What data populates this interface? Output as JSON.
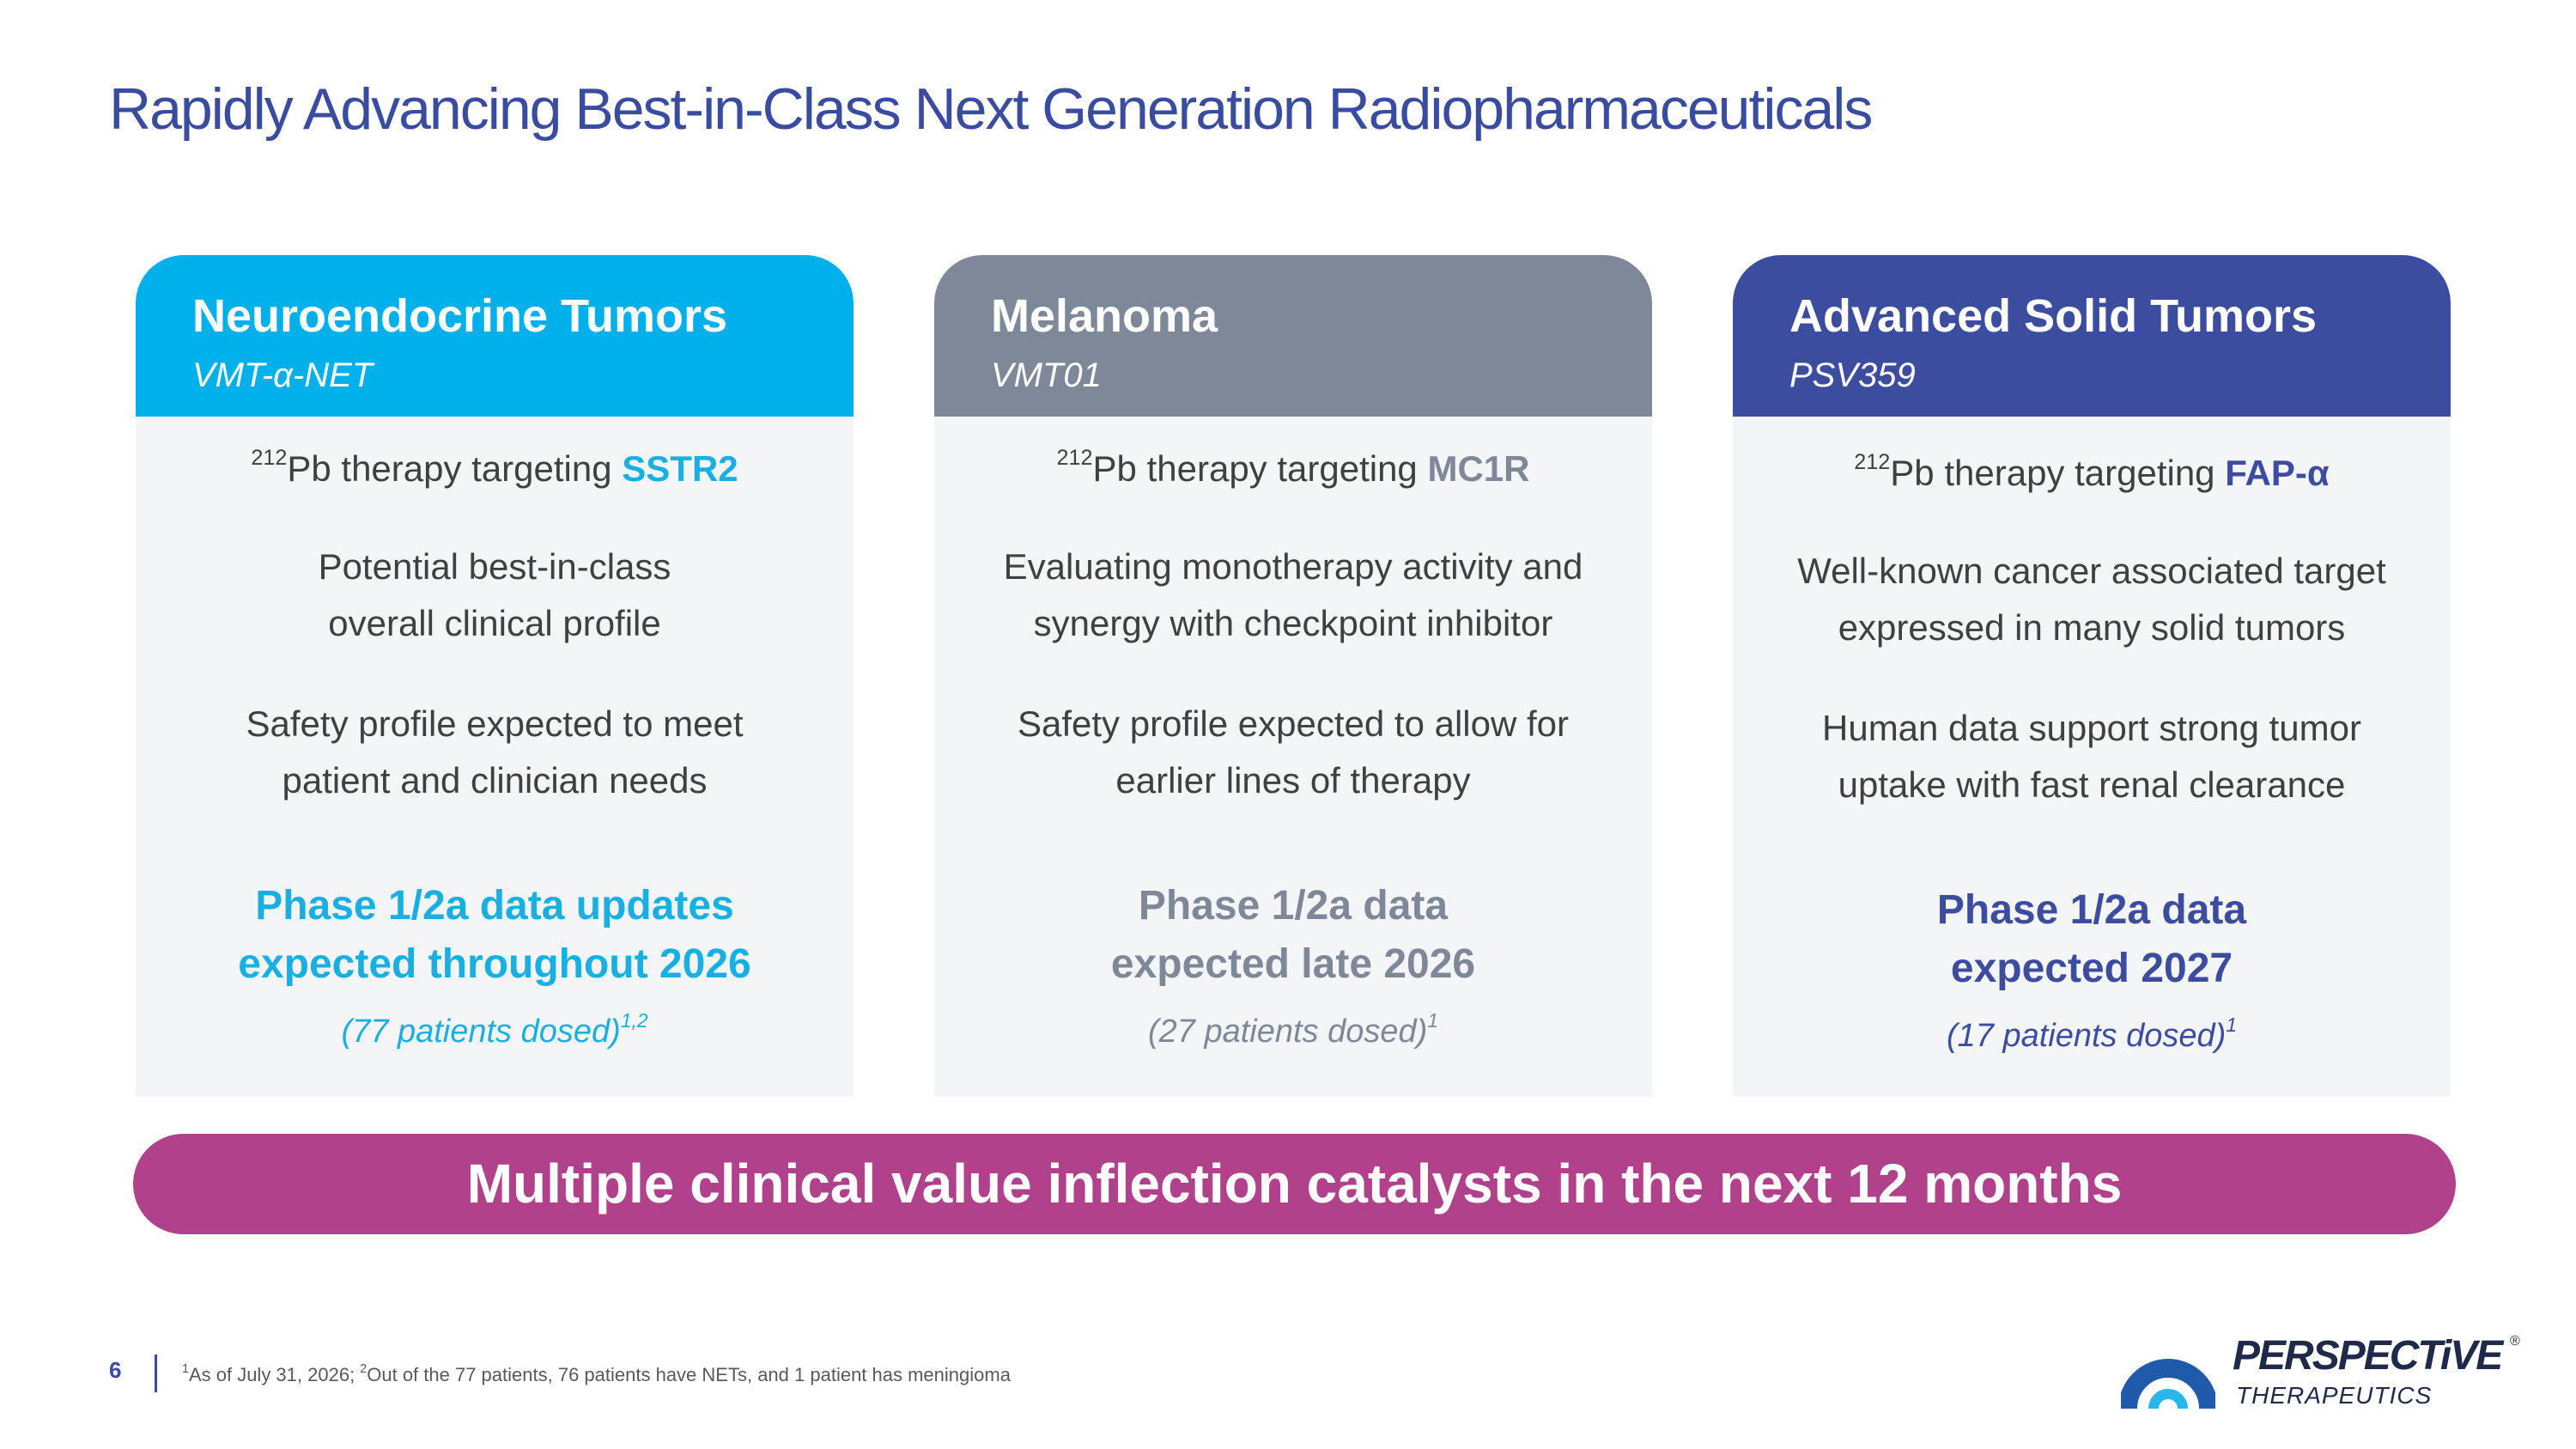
{
  "title": "Rapidly Advancing Best-in-Class Next Generation Radiopharmaceuticals",
  "colors": {
    "title": "#3a4ca0",
    "body_text": "#404040",
    "card_body_bg": "#f4f5f7",
    "banner": "#b0428c"
  },
  "cards": [
    {
      "heading": "Neuroendocrine Tumors",
      "subheading": "VMT-α-NET",
      "header_color": "#00b0ea",
      "accent_color": "#1aafe3",
      "therapy_isotope": "212",
      "therapy_text": "Pb therapy targeting ",
      "therapy_target": "SSTR2",
      "point1_line1": "Potential best-in-class",
      "point1_line2": "overall clinical profile",
      "point2_line1": "Safety profile expected to meet",
      "point2_line2": "patient and clinician needs",
      "phase_line1": "Phase 1/2a data updates",
      "phase_line2": "expected throughout 2026",
      "dosed_text": "(77 patients dosed)",
      "dosed_footnote": "1,2"
    },
    {
      "heading": "Melanoma",
      "subheading": "VMT01",
      "header_color": "#7e8899",
      "accent_color": "#7e8899",
      "therapy_isotope": "212",
      "therapy_text": "Pb therapy targeting ",
      "therapy_target": "MC1R",
      "point1_line1": "Evaluating monotherapy activity and",
      "point1_line2": "synergy with checkpoint inhibitor",
      "point2_line1": "Safety profile expected to allow for",
      "point2_line2": "earlier lines of therapy",
      "phase_line1": "Phase 1/2a data",
      "phase_line2": "expected late 2026",
      "dosed_text": "(27 patients dosed)",
      "dosed_footnote": "1"
    },
    {
      "heading": "Advanced Solid Tumors",
      "subheading": "PSV359",
      "header_color": "#3c4da0",
      "accent_color": "#3c4da0",
      "therapy_isotope": "212",
      "therapy_text": "Pb therapy targeting ",
      "therapy_target": "FAP-α",
      "point1_line1": "Well-known cancer associated target",
      "point1_line2": "expressed in many solid tumors",
      "point2_line1": "Human data support strong tumor",
      "point2_line2": "uptake with fast renal clearance",
      "phase_line1": "Phase 1/2a data",
      "phase_line2": "expected 2027",
      "dosed_text": "(17 patients dosed)",
      "dosed_footnote": "1"
    }
  ],
  "banner": "Multiple clinical value inflection catalysts in the next 12 months",
  "footer": {
    "page_number": "6",
    "footnote_mark1": "1",
    "footnote_text1": "As of July 31, 2026; ",
    "footnote_mark2": "2",
    "footnote_text2": "Out of the 77 patients, 76 patients have NETs, and 1 patient has meningioma"
  },
  "logo": {
    "name": "PERSPECTiVE",
    "tagline": "THERAPEUTICS",
    "registered": "®",
    "icon": "perspective-arch-icon"
  }
}
